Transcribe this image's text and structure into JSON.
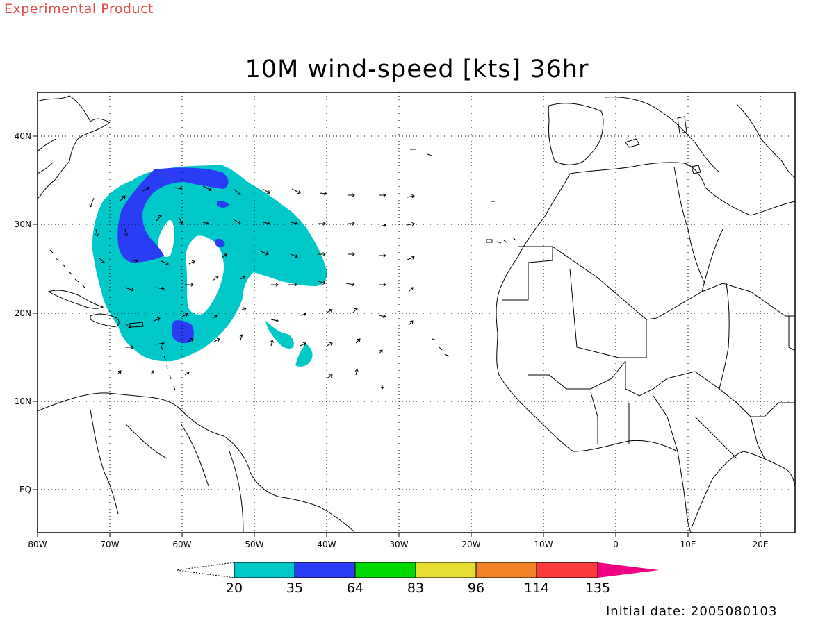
{
  "banner": "Experimental Product",
  "title": "10M wind-speed [kts] 36hr",
  "footer": "Initial date: 2005080103",
  "map": {
    "lon_labels": [
      "80W",
      "70W",
      "60W",
      "50W",
      "40W",
      "30W",
      "20W",
      "10W",
      "0",
      "10E",
      "20E"
    ],
    "lat_labels": [
      "40N",
      "30N",
      "20N",
      "10N",
      "EQ"
    ],
    "colors": {
      "land_outline": "#000000",
      "grid": "#000000"
    },
    "wind_field": {
      "contour_levels": [
        {
          "min_kts": 20,
          "max_kts": 35,
          "color": "#00c8c8"
        },
        {
          "min_kts": 35,
          "max_kts": 64,
          "color": "#2b3cf5"
        }
      ]
    }
  },
  "colorbar": {
    "levels": [
      "20",
      "35",
      "64",
      "83",
      "96",
      "114",
      "135"
    ],
    "colors": [
      "#00c8c8",
      "#2b3cf5",
      "#00d900",
      "#e6dc32",
      "#f08228",
      "#fa3c3c",
      "#f00082"
    ]
  }
}
